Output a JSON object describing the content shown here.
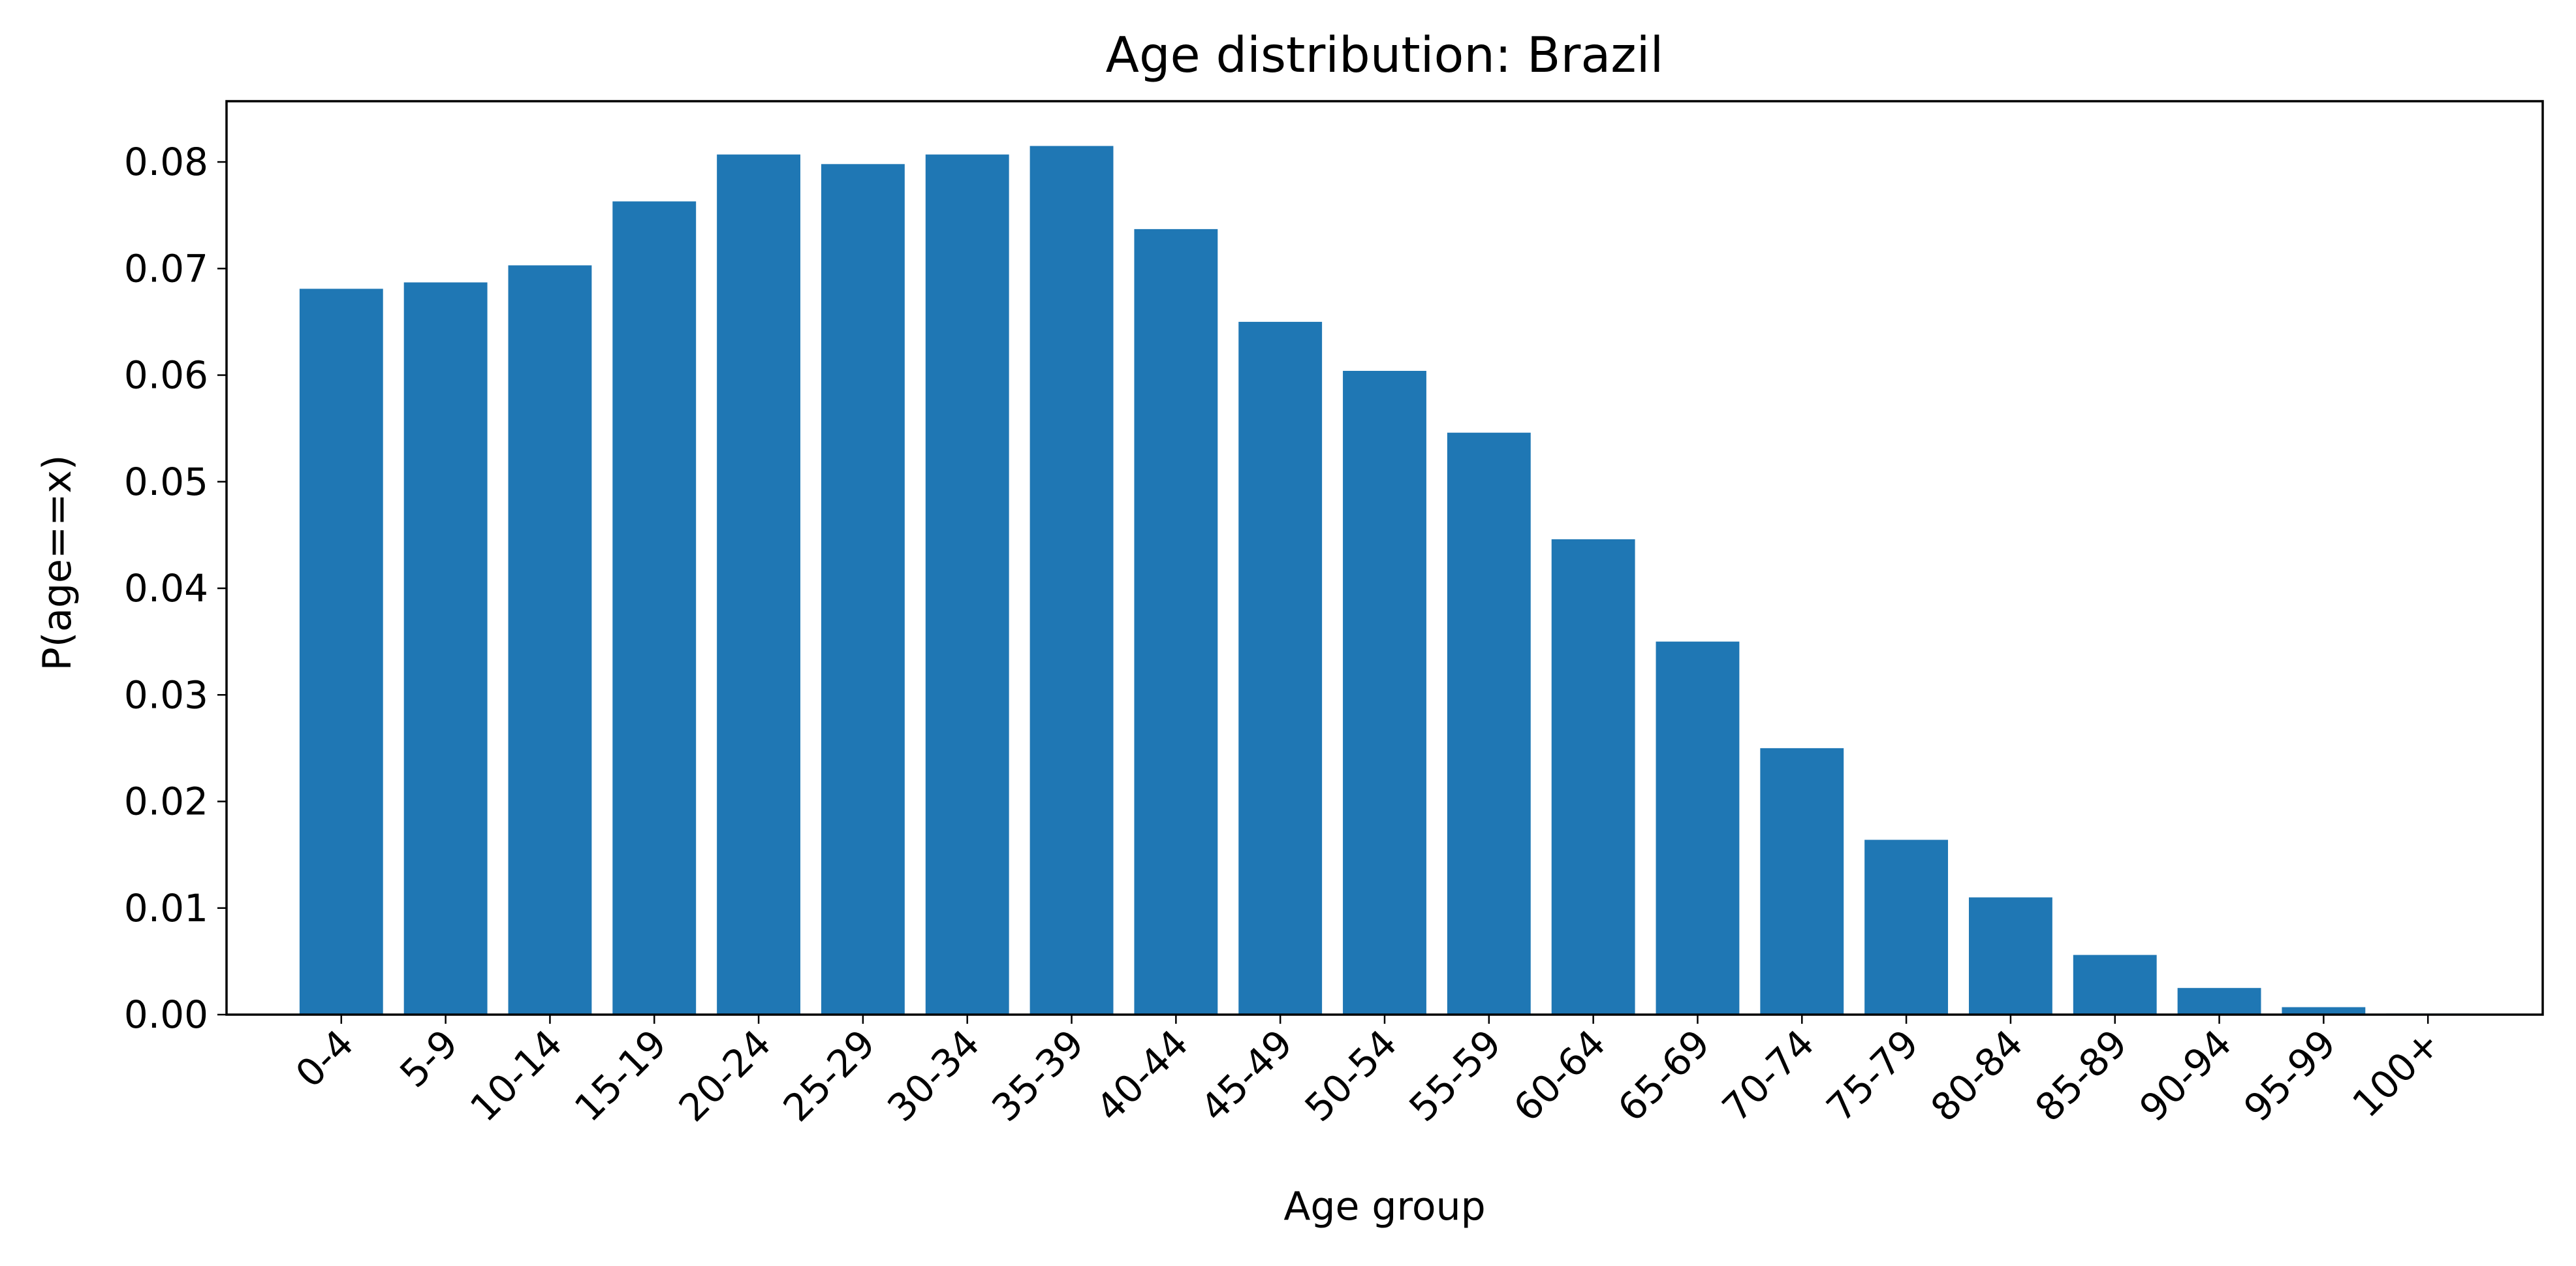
{
  "chart_data": {
    "type": "bar",
    "title": "Age distribution: Brazil",
    "xlabel": "Age group",
    "ylabel": "P(age==x)",
    "categories": [
      "0-4",
      "5-9",
      "10-14",
      "15-19",
      "20-24",
      "25-29",
      "30-34",
      "35-39",
      "40-44",
      "45-49",
      "50-54",
      "55-59",
      "60-64",
      "65-69",
      "70-74",
      "75-79",
      "80-84",
      "85-89",
      "90-94",
      "95-99",
      "100+"
    ],
    "values": [
      0.0681,
      0.0687,
      0.0703,
      0.0763,
      0.0807,
      0.0798,
      0.0807,
      0.0815,
      0.0737,
      0.065,
      0.0604,
      0.0546,
      0.0446,
      0.035,
      0.025,
      0.0164,
      0.011,
      0.0056,
      0.0025,
      0.0007,
      0.0001
    ],
    "ylim": [
      0,
      0.0857
    ],
    "yticks": [
      "0.00",
      "0.01",
      "0.02",
      "0.03",
      "0.04",
      "0.05",
      "0.06",
      "0.07",
      "0.08"
    ],
    "bar_color": "#1f77b4",
    "grid": false,
    "legend": "none"
  }
}
